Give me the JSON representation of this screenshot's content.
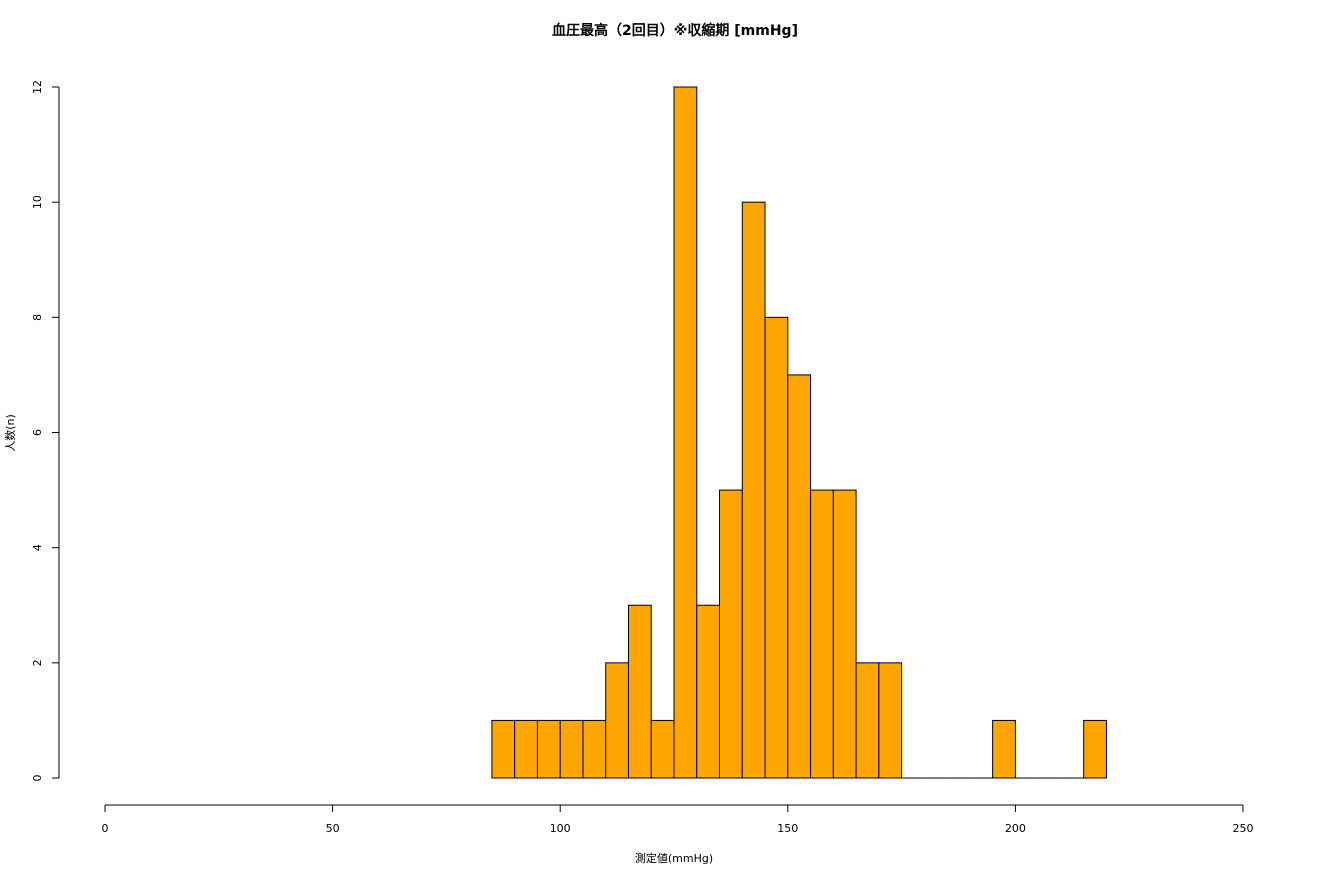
{
  "chart_data": {
    "type": "bar",
    "title": "血圧最高（2回目）※収縮期 [mmHg]",
    "xlabel": "測定値(mmHg)",
    "ylabel": "人数(n)",
    "xlim": [
      0,
      250
    ],
    "ylim": [
      0,
      12
    ],
    "x_ticks": [
      "0",
      "50",
      "100",
      "150",
      "200",
      "250"
    ],
    "y_ticks": [
      "0",
      "2",
      "4",
      "6",
      "8",
      "10",
      "12"
    ],
    "bin_width": 5,
    "bin_starts": [
      85,
      90,
      95,
      100,
      105,
      110,
      115,
      120,
      125,
      130,
      135,
      140,
      145,
      150,
      155,
      160,
      165,
      170,
      175,
      180,
      185,
      190,
      195,
      200,
      205,
      210,
      215
    ],
    "values": [
      1,
      1,
      1,
      1,
      1,
      2,
      3,
      1,
      12,
      3,
      5,
      10,
      8,
      7,
      5,
      5,
      2,
      2,
      0,
      0,
      0,
      0,
      1,
      0,
      0,
      0,
      1
    ],
    "bar_color": "#FFA500",
    "grid": false,
    "legend": "none"
  }
}
